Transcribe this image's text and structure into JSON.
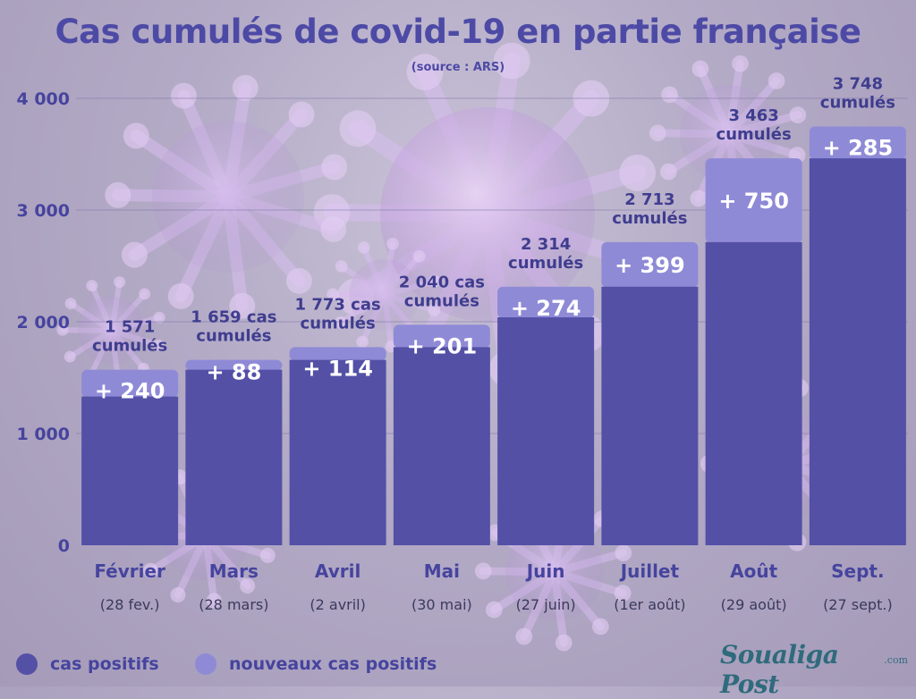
{
  "title": "Cas cumulés de covid-19 en partie française",
  "subtitle": "(source : ARS)",
  "legend": [
    {
      "label": "cas positifs",
      "color": "#5350a6"
    },
    {
      "label": "nouveaux cas positifs",
      "color": "#8f8ad6"
    }
  ],
  "brand": {
    "name": "Soualiga Post",
    "domain": ".com"
  },
  "chart_data": {
    "type": "bar",
    "stacked": true,
    "categories": [
      "Février",
      "Mars",
      "Avril",
      "Mai",
      "Juin",
      "Juillet",
      "Août",
      "Sept."
    ],
    "date_labels": [
      "(28 fev.)",
      "(28 mars)",
      "(2 avril)",
      "(30 mai)",
      "(27 juin)",
      "(1er août)",
      "(29 août)",
      "(27 sept.)"
    ],
    "series": [
      {
        "name": "cas positifs",
        "values": [
          1331,
          1571,
          1659,
          1773,
          2040,
          2314,
          2713,
          3463
        ],
        "color": "#5350a6"
      },
      {
        "name": "nouveaux cas positifs",
        "values": [
          240,
          88,
          114,
          201,
          274,
          399,
          750,
          285
        ],
        "color": "#8f8ad6"
      }
    ],
    "new_labels": [
      "+ 240",
      "+ 88",
      "+ 114",
      "+ 201",
      "+ 274",
      "+ 399",
      "+ 750",
      "+ 285"
    ],
    "total_labels": [
      [
        "1 571",
        "cumulés"
      ],
      [
        "1 659 cas",
        "cumulés"
      ],
      [
        "1 773 cas",
        "cumulés"
      ],
      [
        "2 040 cas",
        "cumulés"
      ],
      [
        "2 314",
        "cumulés"
      ],
      [
        "2 713",
        "cumulés"
      ],
      [
        "3 463",
        "cumulés"
      ],
      [
        "3 748",
        "cumulés"
      ]
    ],
    "y_ticks": [
      0,
      1000,
      2000,
      3000,
      4000
    ],
    "y_tick_labels": [
      "0",
      "1 000",
      "2 000",
      "3 000",
      "4 000"
    ],
    "ylim": [
      0,
      4000
    ],
    "grid": true
  }
}
